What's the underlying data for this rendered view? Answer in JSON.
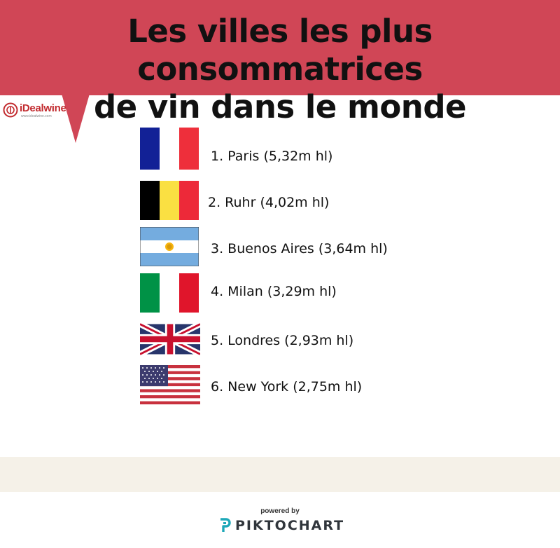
{
  "title": {
    "line1": "Les villes les plus consommatrices",
    "line2": "de vin dans le monde"
  },
  "logo": {
    "name": "iDealwine",
    "sub": "www.idealwine.com",
    "icon": "idealwine-logo-icon"
  },
  "ranking": [
    {
      "label": "1. Paris (5,32m hl)",
      "flag": "france-flag-icon"
    },
    {
      "label": "2. Ruhr (4,02m hl)",
      "flag": "belgium-flag-icon"
    },
    {
      "label": "3. Buenos Aires (3,64m hl)",
      "flag": "argentina-flag-icon"
    },
    {
      "label": "4. Milan (3,29m hl)",
      "flag": "italy-flag-icon"
    },
    {
      "label": "5. Londres (2,93m hl)",
      "flag": "uk-flag-icon"
    },
    {
      "label": "6. New York (2,75m hl)",
      "flag": "usa-flag-icon"
    }
  ],
  "footer": {
    "powered_by": "powered by",
    "brand": "PIKTOCHART",
    "brand_icon": "piktochart-logo-icon"
  },
  "colors": {
    "banner": "#d04656",
    "bottom_band": "#f5f1e8",
    "brand_teal": "#1ea8b8"
  }
}
